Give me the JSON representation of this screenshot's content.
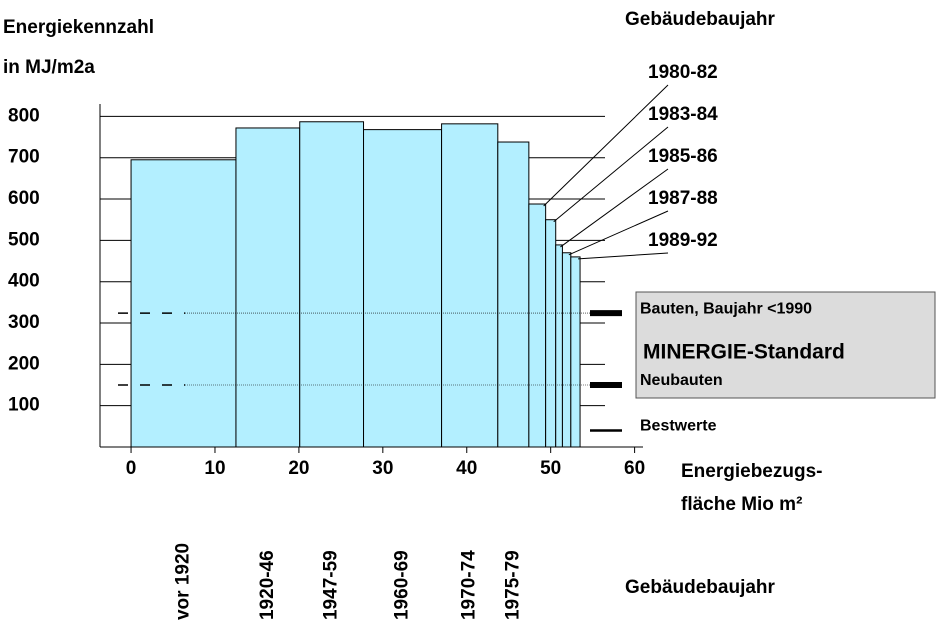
{
  "chart_data": {
    "type": "histogram",
    "y_label_lines": [
      "Energiekennzahl",
      "in MJ/m2a"
    ],
    "x_label_lines": [
      "Energiebezugs-",
      "fläche Mio m²"
    ],
    "period_title_top": "Gebäudebaujahr",
    "period_title_bottom": "Gebäudebaujahr",
    "categories": [
      "vor 1920",
      "1920-46",
      "1947-59",
      "1960-69",
      "1970-74",
      "1975-79",
      "1980-82",
      "1983-84",
      "1985-86",
      "1987-88",
      "1989-92"
    ],
    "bins": [
      0,
      12.5,
      20.1,
      27.7,
      37.0,
      43.7,
      47.4,
      49.4,
      50.6,
      51.4,
      52.4,
      53.5
    ],
    "values": [
      695,
      772,
      787,
      768,
      782,
      738,
      588,
      550,
      489,
      470,
      460
    ],
    "color": "#b3efff",
    "xlim": [
      -3.7,
      61
    ],
    "ylim": [
      0,
      830
    ],
    "xticks": [
      0,
      10,
      20,
      30,
      40,
      50,
      60
    ],
    "yticks": [
      100,
      200,
      300,
      400,
      500,
      600,
      700,
      800
    ],
    "grid": true,
    "box_title": "MINERGIE-Standard",
    "reference_lines": [
      {
        "label": "Bauten, Baujahr <1990",
        "value": 324,
        "weight": "thick",
        "dotted": true
      },
      {
        "label": "Neubauten",
        "value": 150,
        "weight": "thick",
        "dotted": true
      },
      {
        "label": "Bestwerte",
        "value": 40,
        "weight": "thin",
        "dotted": false
      }
    ]
  }
}
